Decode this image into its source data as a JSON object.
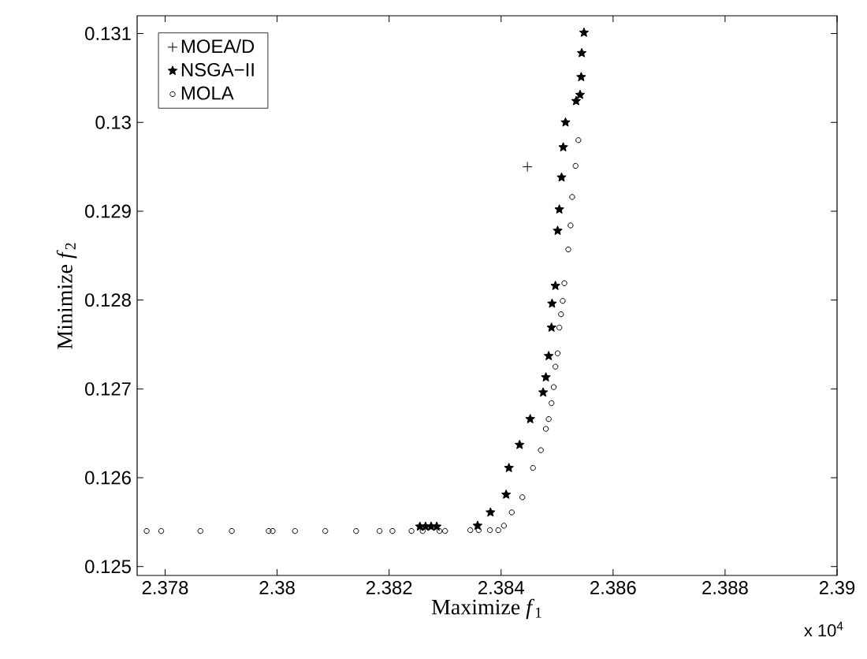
{
  "chart_data": {
    "type": "scatter",
    "xlabel": "Maximize *f*$_{1}$",
    "ylabel": "Minimize *f*$_{2}$",
    "xlim": [
      2.3775,
      2.39
    ],
    "ylim": [
      0.1249,
      0.1312
    ],
    "xticks": [
      2.378,
      2.38,
      2.382,
      2.384,
      2.386,
      2.388,
      2.39
    ],
    "yticks": [
      0.125,
      0.126,
      0.127,
      0.128,
      0.129,
      0.13,
      0.131
    ],
    "grid": false,
    "legend": "top left",
    "annotations": [
      "x 10$^{4}$"
    ],
    "series": [
      {
        "name": "MOEA/D",
        "color": "#000000",
        "marker": "cross",
        "x": [
          2.38447
        ],
        "values": [
          0.1295
        ]
      },
      {
        "name": "NSGA−II",
        "color": "#000000",
        "marker": "star",
        "x": [
          2.38255,
          2.38265,
          2.38275,
          2.38285,
          2.38358,
          2.38381,
          2.38409,
          2.38414,
          2.38433,
          2.38452,
          2.38475,
          2.3848,
          2.38485,
          2.3849,
          2.38491,
          2.38497,
          2.38501,
          2.38504,
          2.38508,
          2.38511,
          2.38515,
          2.38534,
          2.38541,
          2.38543,
          2.38544,
          2.38548
        ],
        "values": [
          0.12545,
          0.12545,
          0.12545,
          0.12545,
          0.12546,
          0.12561,
          0.12581,
          0.12611,
          0.12637,
          0.12666,
          0.12696,
          0.12713,
          0.12737,
          0.12769,
          0.12796,
          0.12816,
          0.12878,
          0.12902,
          0.12938,
          0.12972,
          0.13,
          0.13024,
          0.13031,
          0.13051,
          0.13078,
          0.13101
        ]
      },
      {
        "name": "MOLA",
        "color": "#000000",
        "marker": "circle",
        "x": [
          2.37767,
          2.37793,
          2.37863,
          2.37919,
          2.37985,
          2.37992,
          2.38032,
          2.38086,
          2.38141,
          2.38183,
          2.38206,
          2.3824,
          2.3826,
          2.3829,
          2.383,
          2.38345,
          2.3836,
          2.3838,
          2.38395,
          2.38405,
          2.38419,
          2.38438,
          2.38457,
          2.38471,
          2.3848,
          2.38485,
          2.3849,
          2.38494,
          2.38497,
          2.38501,
          2.38504,
          2.38507,
          2.3851,
          2.38513,
          2.3852,
          2.38524,
          2.38527,
          2.38533,
          2.38538
        ],
        "values": [
          0.1254,
          0.1254,
          0.1254,
          0.1254,
          0.1254,
          0.1254,
          0.1254,
          0.1254,
          0.1254,
          0.1254,
          0.1254,
          0.1254,
          0.1254,
          0.1254,
          0.1254,
          0.12541,
          0.12541,
          0.12541,
          0.12541,
          0.12546,
          0.12561,
          0.12578,
          0.12611,
          0.12631,
          0.12655,
          0.12666,
          0.12684,
          0.12702,
          0.12725,
          0.1274,
          0.12769,
          0.12784,
          0.12799,
          0.12819,
          0.12857,
          0.12884,
          0.12916,
          0.12951,
          0.1298
        ]
      }
    ]
  }
}
